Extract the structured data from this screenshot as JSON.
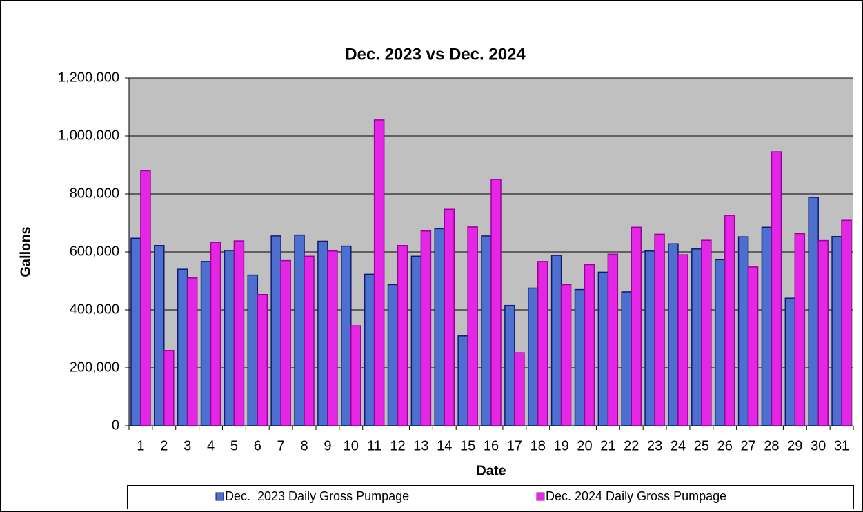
{
  "chart_data": {
    "type": "bar",
    "title": "Dec. 2023 vs Dec. 2024",
    "x_label": "Date",
    "y_label": "Gallons",
    "categories": [
      "1",
      "2",
      "3",
      "4",
      "5",
      "6",
      "7",
      "8",
      "9",
      "10",
      "11",
      "12",
      "13",
      "14",
      "15",
      "16",
      "17",
      "18",
      "19",
      "20",
      "21",
      "22",
      "23",
      "24",
      "25",
      "26",
      "27",
      "28",
      "29",
      "30",
      "31"
    ],
    "series": [
      {
        "name": "Dec.  2023 Daily Gross Pumpage",
        "color": "#4d6fd0",
        "values": [
          647000,
          622000,
          540000,
          567000,
          605000,
          520000,
          655000,
          658000,
          637000,
          620000,
          523000,
          487000,
          585000,
          680000,
          310000,
          655000,
          415000,
          475000,
          588000,
          470000,
          530000,
          462000,
          603000,
          628000,
          610000,
          573000,
          652000,
          685000,
          440000,
          788000,
          653000
        ]
      },
      {
        "name": "Dec. 2024 Daily Gross Pumpage",
        "color": "#e526e5",
        "values": [
          880000,
          260000,
          510000,
          633000,
          638000,
          453000,
          570000,
          585000,
          603000,
          345000,
          1055000,
          622000,
          672000,
          747000,
          686000,
          850000,
          252000,
          567000,
          487000,
          556000,
          592000,
          685000,
          661000,
          590000,
          640000,
          726000,
          548000,
          945000,
          663000,
          639000,
          709000
        ]
      }
    ],
    "ylim": [
      0,
      1200000
    ],
    "yticks": [
      0,
      {
        "value": 200000,
        "label": "200,000"
      },
      {
        "value": 400000,
        "label": "400,000"
      },
      {
        "value": 600000,
        "label": "600,000"
      },
      {
        "value": 800000,
        "label": "800,000"
      },
      {
        "value": 1000000,
        "label": "1,000,000"
      },
      {
        "value": 1200000,
        "label": "1,200,000"
      }
    ],
    "grid": true,
    "legend": "bottom"
  }
}
